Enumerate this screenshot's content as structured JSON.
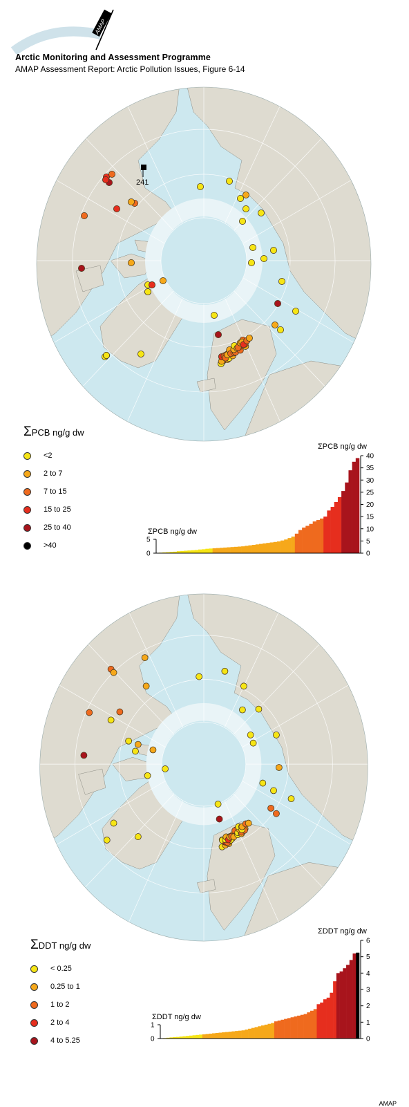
{
  "header": {
    "title": "Arctic Monitoring and Assessment Programme",
    "subtitle": "AMAP Assessment Report: Arctic Pollution Issues, Figure 6-14",
    "logo_text": "AMAP"
  },
  "colors": {
    "c1": "#f6e515",
    "c2": "#f6a81a",
    "c3": "#ef6a1e",
    "c4": "#e62e1e",
    "c5": "#a8141c",
    "c6": "#000000",
    "land": "#dedbd0",
    "ocean": "#cde8ef",
    "ice": "#e9f4f7",
    "coast": "#8a8a82"
  },
  "pcb": {
    "legend": {
      "sigma": "Σ",
      "title": "PCB ng/g dw",
      "items": [
        {
          "label": "<2",
          "color": "#f6e515"
        },
        {
          "label": "2 to 7",
          "color": "#f6a81a"
        },
        {
          "label": "7 to 15",
          "color": "#ef6a1e"
        },
        {
          "label": "15 to 25",
          "color": "#e62e1e"
        },
        {
          "label": "25 to 40",
          "color": "#a8141c"
        },
        {
          "label": ">40",
          "color": "#000000"
        }
      ]
    },
    "map_annotation": "241"
  },
  "ddt": {
    "legend": {
      "sigma": "Σ",
      "title": "DDT ng/g dw",
      "items": [
        {
          "label": "< 0.25",
          "color": "#f6e515"
        },
        {
          "label": "0.25 to 1",
          "color": "#f6a81a"
        },
        {
          "label": "1 to 2",
          "color": "#ef6a1e"
        },
        {
          "label": "2 to 4",
          "color": "#e62e1e"
        },
        {
          "label": "4 to 5.25",
          "color": "#a8141c"
        }
      ]
    }
  },
  "chart_data": [
    {
      "type": "bar",
      "title": "ΣPCB ng/g dw",
      "ylabel": "ΣPCB ng/g dw",
      "inset_ylabel": "ΣPCB ng/g dw",
      "ylim": [
        0,
        40
      ],
      "yticks": [
        "0",
        "5",
        "10",
        "15",
        "20",
        "25",
        "30",
        "35",
        "40"
      ],
      "inset_ylim": [
        0,
        5
      ],
      "inset_yticks": [
        "0",
        "5"
      ],
      "values": [
        0.2,
        0.3,
        0.4,
        0.5,
        0.6,
        0.8,
        0.9,
        1.0,
        1.1,
        1.2,
        1.3,
        1.5,
        1.6,
        1.8,
        1.9,
        2.0,
        2.1,
        2.2,
        2.3,
        2.4,
        2.5,
        2.6,
        2.7,
        2.8,
        3.0,
        3.2,
        3.4,
        3.6,
        3.8,
        4.0,
        4.2,
        4.4,
        4.6,
        4.8,
        5.2,
        5.6,
        6.2,
        6.8,
        8.0,
        9.5,
        10.5,
        11.2,
        12.0,
        13.0,
        13.6,
        14.2,
        15.0,
        17.5,
        19.0,
        21.0,
        23.0,
        25.5,
        29.0,
        34.0,
        37.5,
        39.0
      ]
    },
    {
      "type": "bar",
      "title": "ΣDDT ng/g dw",
      "ylabel": "ΣDDT ng/g dw",
      "inset_ylabel": "ΣDDT ng/g dw",
      "ylim": [
        0,
        6
      ],
      "yticks": [
        "0",
        "1",
        "2",
        "3",
        "4",
        "5",
        "6"
      ],
      "inset_ylim": [
        0,
        1
      ],
      "inset_yticks": [
        "0",
        "1"
      ],
      "values": [
        0.03,
        0.05,
        0.07,
        0.09,
        0.1,
        0.12,
        0.14,
        0.16,
        0.18,
        0.2,
        0.22,
        0.24,
        0.26,
        0.28,
        0.3,
        0.32,
        0.34,
        0.36,
        0.38,
        0.4,
        0.42,
        0.44,
        0.46,
        0.48,
        0.5,
        0.55,
        0.6,
        0.65,
        0.7,
        0.75,
        0.8,
        0.85,
        0.9,
        0.95,
        1.05,
        1.1,
        1.15,
        1.2,
        1.25,
        1.3,
        1.35,
        1.4,
        1.45,
        1.5,
        1.6,
        1.7,
        1.8,
        2.1,
        2.2,
        2.4,
        2.5,
        2.8,
        3.5,
        4.0,
        4.1,
        4.3,
        4.5,
        4.8,
        5.2,
        5.25
      ]
    }
  ],
  "footer": {
    "credit": "AMAP"
  }
}
